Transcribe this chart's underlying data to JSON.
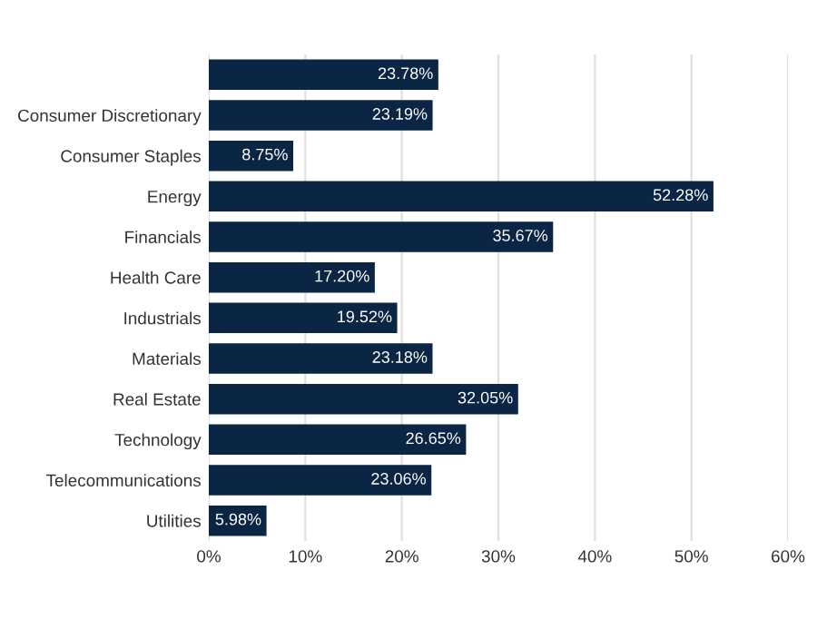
{
  "chart_data": {
    "type": "bar",
    "orientation": "horizontal",
    "categories": [
      null,
      "Consumer Discretionary",
      "Consumer Staples",
      "Energy",
      "Financials",
      "Health Care",
      "Industrials",
      "Materials",
      "Real Estate",
      "Technology",
      "Telecommunications",
      "Utilities"
    ],
    "values": [
      23.78,
      23.19,
      8.75,
      52.28,
      35.67,
      17.2,
      19.52,
      23.18,
      32.05,
      26.65,
      23.06,
      5.98
    ],
    "value_labels": [
      "23.78%",
      "23.19%",
      "8.75%",
      "52.28%",
      "35.67%",
      "17.20%",
      "19.52%",
      "23.18%",
      "32.05%",
      "26.65%",
      "23.06%",
      "5.98%"
    ],
    "color": "#0b2545",
    "xlim": [
      0,
      60
    ],
    "xticks": [
      {
        "value": 0,
        "label": "0%"
      },
      {
        "value": 10,
        "label": "10%"
      },
      {
        "value": 20,
        "label": "20%"
      },
      {
        "value": 30,
        "label": "30%"
      },
      {
        "value": 40,
        "label": "40%"
      },
      {
        "value": 50,
        "label": "50%"
      },
      {
        "value": 60,
        "label": "60%"
      }
    ],
    "grid": "x",
    "legend": false
  }
}
